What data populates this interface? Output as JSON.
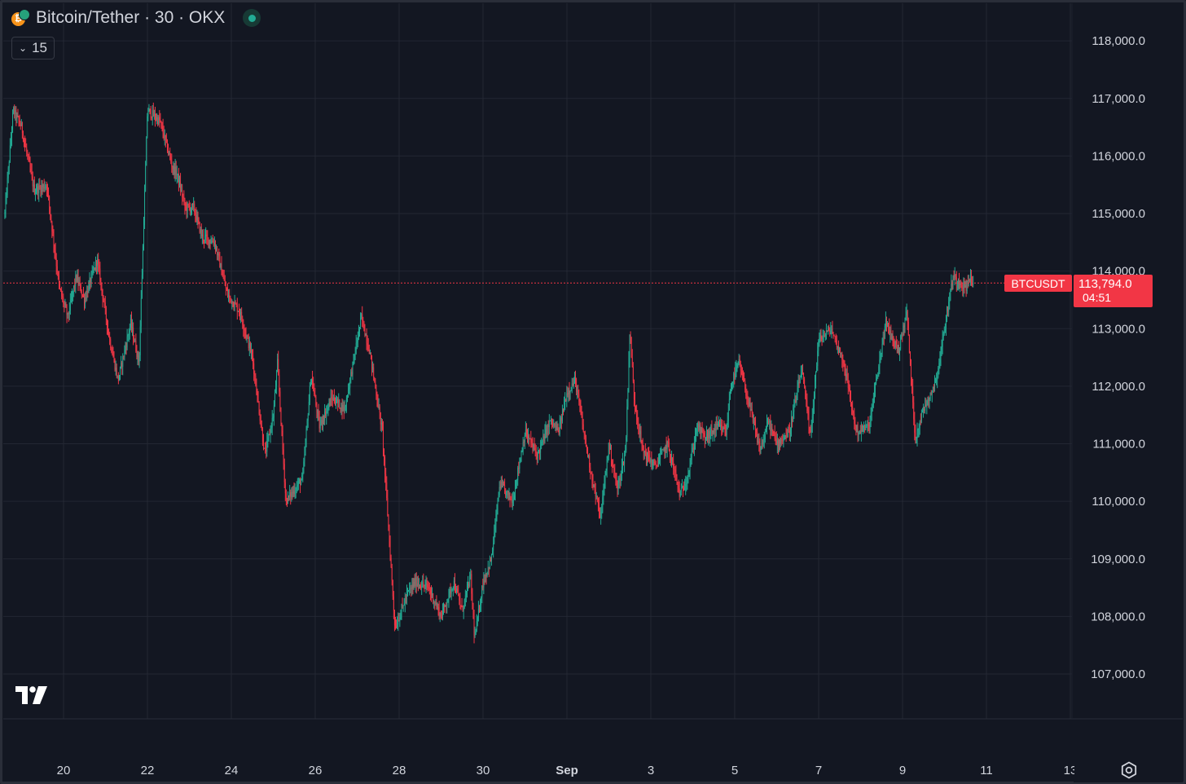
{
  "legend": {
    "title": "Bitcoin/Tether · 30 · OKX",
    "collapsed_count": "15",
    "icon": "bitcoin-tether-icon",
    "status_icon": "market-open-dot-icon"
  },
  "colors": {
    "background": "#131722",
    "grid": "#232733",
    "up": "#22ab94",
    "down": "#f23645",
    "text": "#d1d4dc",
    "price_line": "#f23645"
  },
  "price_tag": {
    "symbol": "BTCUSDT",
    "price": "113,794.0",
    "countdown": "04:51"
  },
  "settings_icon": "settings-gear-icon",
  "logo_icon": "tradingview-logo-icon",
  "chart_data": {
    "type": "candlestick",
    "symbol": "BTCUSDT",
    "interval": "30",
    "exchange": "OKX",
    "last_price": 113794.0,
    "ylim": [
      106200,
      118700
    ],
    "y_ticks": [
      "118,000.0",
      "117,000.0",
      "116,000.0",
      "115,000.0",
      "114,000.0",
      "113,000.0",
      "112,000.0",
      "111,000.0",
      "110,000.0",
      "109,000.0",
      "108,000.0",
      "107,000.0"
    ],
    "y_tick_values": [
      118000,
      117000,
      116000,
      115000,
      114000,
      113000,
      112000,
      111000,
      110000,
      109000,
      108000,
      107000
    ],
    "x_ticks": [
      "20",
      "22",
      "24",
      "26",
      "28",
      "30",
      "Sep",
      "3",
      "5",
      "7",
      "9",
      "11",
      "13"
    ],
    "x_tick_days": [
      20,
      22,
      24,
      26,
      28,
      30,
      32,
      34,
      36,
      38,
      40,
      42,
      44
    ],
    "x_start_day": 18.6,
    "x_end_day": 43.8,
    "grid": true,
    "price_path_days": [
      18.6,
      18.8,
      19.0,
      19.3,
      19.6,
      19.9,
      20.1,
      20.3,
      20.5,
      20.8,
      21.1,
      21.3,
      21.6,
      21.8,
      22.0,
      22.3,
      22.6,
      22.7,
      22.9,
      23.1,
      23.3,
      23.6,
      23.9,
      24.2,
      24.5,
      24.8,
      25.0,
      25.1,
      25.3,
      25.5,
      25.7,
      25.9,
      26.1,
      26.4,
      26.7,
      26.9,
      27.1,
      27.3,
      27.6,
      27.9,
      28.2,
      28.4,
      28.7,
      29.0,
      29.3,
      29.5,
      29.7,
      29.8,
      30.0,
      30.2,
      30.4,
      30.7,
      31.0,
      31.3,
      31.6,
      31.8,
      32.0,
      32.2,
      32.4,
      32.6,
      32.8,
      33.0,
      33.2,
      33.4,
      33.5,
      33.6,
      33.8,
      34.1,
      34.4,
      34.7,
      34.9,
      35.1,
      35.3,
      35.6,
      35.8,
      35.9,
      36.1,
      36.4,
      36.6,
      36.7,
      36.8,
      37.0,
      37.3,
      37.6,
      37.8,
      38.0,
      38.3,
      38.6,
      38.9,
      39.2,
      39.4,
      39.6,
      39.9,
      40.1,
      40.3,
      40.5,
      40.8,
      41.0,
      41.2,
      41.4,
      41.5,
      41.6,
      41.7
    ],
    "price_path_values": [
      115000,
      116800,
      116500,
      115400,
      115500,
      113700,
      113200,
      113900,
      113500,
      114200,
      112800,
      112100,
      113100,
      112400,
      116800,
      116600,
      115800,
      115700,
      115100,
      115100,
      114600,
      114500,
      113600,
      113300,
      112500,
      110800,
      111500,
      112400,
      110000,
      110200,
      110400,
      112200,
      111300,
      111800,
      111600,
      112400,
      113200,
      112600,
      111200,
      107800,
      108400,
      108600,
      108500,
      108000,
      108600,
      108100,
      108700,
      107600,
      108600,
      109000,
      110300,
      110000,
      111200,
      110800,
      111400,
      111200,
      111900,
      112100,
      111200,
      110400,
      109700,
      111000,
      110200,
      110900,
      113000,
      111800,
      110900,
      110600,
      111000,
      110100,
      110500,
      111300,
      111100,
      111300,
      111200,
      112000,
      112400,
      111500,
      110900,
      111100,
      111400,
      111000,
      111200,
      112300,
      111100,
      112800,
      113000,
      112400,
      111200,
      111300,
      112200,
      113100,
      112600,
      113300,
      111100,
      111600,
      112100,
      113000,
      113900,
      113800,
      113700,
      113900,
      113794
    ]
  }
}
